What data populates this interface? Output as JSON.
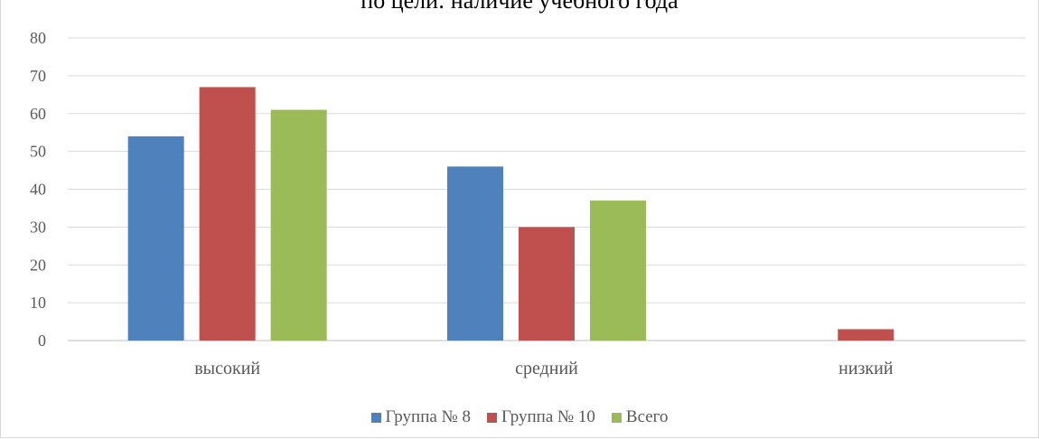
{
  "chart_data": {
    "type": "bar",
    "title": "по цели: наличие учебного года",
    "categories": [
      "высокий",
      "средний",
      "низкий"
    ],
    "series": [
      {
        "name": "Группа № 8",
        "color": "#4f81bd",
        "values": [
          54,
          46,
          0
        ]
      },
      {
        "name": "Группа № 10",
        "color": "#c0504d",
        "values": [
          67,
          30,
          3
        ]
      },
      {
        "name": "Всего",
        "color": "#9bbb59",
        "values": [
          61,
          37,
          0
        ]
      }
    ],
    "ylim": [
      0,
      80
    ],
    "yticks": [
      0,
      10,
      20,
      30,
      40,
      50,
      60,
      70,
      80
    ],
    "grid": true,
    "legend_position": "bottom",
    "xlabel": "",
    "ylabel": ""
  }
}
